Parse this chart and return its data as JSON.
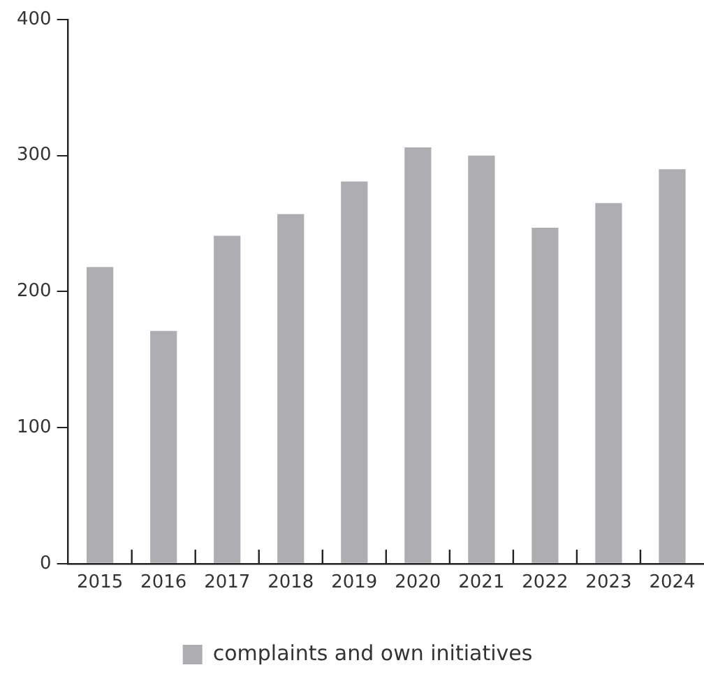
{
  "chart_data": {
    "type": "bar",
    "categories": [
      "2015",
      "2016",
      "2017",
      "2018",
      "2019",
      "2020",
      "2021",
      "2022",
      "2023",
      "2024"
    ],
    "series": [
      {
        "name": "complaints and own initiatives",
        "color": "#aeadb1",
        "values": [
          218,
          171,
          241,
          257,
          281,
          306,
          300,
          247,
          265,
          290
        ]
      }
    ],
    "ylim": [
      0,
      400
    ],
    "yticks": [
      0,
      100,
      200,
      300,
      400
    ],
    "grid": false,
    "legend": "bottom"
  }
}
